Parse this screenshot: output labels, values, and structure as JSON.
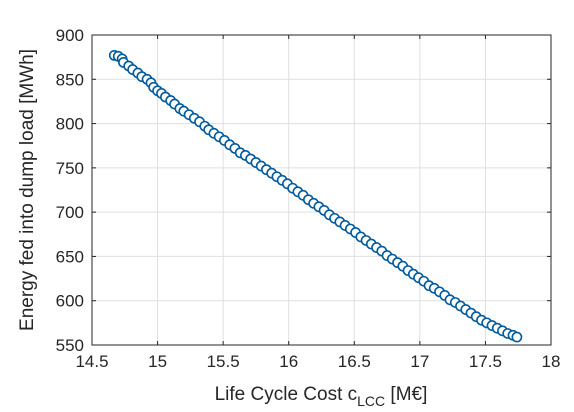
{
  "chart_data": {
    "type": "scatter",
    "title": "",
    "xlabel": {
      "main": "Life Cycle Cost c",
      "sub": "LCC",
      "unit": " [M€]"
    },
    "ylabel": "Energy fed into dump load [MWh]",
    "xlim": [
      14.5,
      18
    ],
    "ylim": [
      550,
      900
    ],
    "xticks": [
      14.5,
      15,
      15.5,
      16,
      16.5,
      17,
      17.5,
      18
    ],
    "xtick_labels": [
      "14.5",
      "15",
      "15.5",
      "16",
      "16.5",
      "17",
      "17.5",
      "18"
    ],
    "yticks": [
      550,
      600,
      650,
      700,
      750,
      800,
      850,
      900
    ],
    "ytick_labels": [
      "550",
      "600",
      "650",
      "700",
      "750",
      "800",
      "850",
      "900"
    ],
    "grid": true,
    "marker_edge_color": "#005a9c",
    "marker_face_color": "#ffffff",
    "series": [
      {
        "points": [
          [
            14.67,
            877
          ],
          [
            14.7,
            876
          ],
          [
            14.73,
            873
          ],
          [
            14.74,
            869
          ],
          [
            14.78,
            865
          ],
          [
            14.81,
            861
          ],
          [
            14.85,
            857
          ],
          [
            14.88,
            853
          ],
          [
            14.92,
            850
          ],
          [
            14.95,
            846
          ],
          [
            14.97,
            841
          ],
          [
            15.0,
            837
          ],
          [
            15.03,
            834
          ],
          [
            15.06,
            830
          ],
          [
            15.1,
            826
          ],
          [
            15.13,
            822
          ],
          [
            15.17,
            817
          ],
          [
            15.2,
            814
          ],
          [
            15.24,
            810
          ],
          [
            15.28,
            806
          ],
          [
            15.32,
            802
          ],
          [
            15.36,
            797
          ],
          [
            15.39,
            793
          ],
          [
            15.43,
            789
          ],
          [
            15.47,
            785
          ],
          [
            15.51,
            781
          ],
          [
            15.55,
            776
          ],
          [
            15.59,
            772
          ],
          [
            15.63,
            767
          ],
          [
            15.67,
            764
          ],
          [
            15.71,
            760
          ],
          [
            15.75,
            756
          ],
          [
            15.79,
            752
          ],
          [
            15.83,
            748
          ],
          [
            15.87,
            744
          ],
          [
            15.91,
            740
          ],
          [
            15.95,
            736
          ],
          [
            15.99,
            732
          ],
          [
            16.03,
            727
          ],
          [
            16.07,
            723
          ],
          [
            16.11,
            719
          ],
          [
            16.15,
            714
          ],
          [
            16.19,
            710
          ],
          [
            16.23,
            706
          ],
          [
            16.27,
            702
          ],
          [
            16.31,
            697
          ],
          [
            16.35,
            693
          ],
          [
            16.39,
            689
          ],
          [
            16.43,
            685
          ],
          [
            16.47,
            681
          ],
          [
            16.51,
            677
          ],
          [
            16.55,
            672
          ],
          [
            16.59,
            668
          ],
          [
            16.63,
            664
          ],
          [
            16.67,
            660
          ],
          [
            16.71,
            656
          ],
          [
            16.75,
            651
          ],
          [
            16.79,
            647
          ],
          [
            16.83,
            643
          ],
          [
            16.87,
            639
          ],
          [
            16.91,
            634
          ],
          [
            16.95,
            630
          ],
          [
            16.99,
            626
          ],
          [
            17.03,
            622
          ],
          [
            17.07,
            617
          ],
          [
            17.11,
            614
          ],
          [
            17.15,
            610
          ],
          [
            17.19,
            606
          ],
          [
            17.23,
            601
          ],
          [
            17.27,
            598
          ],
          [
            17.31,
            594
          ],
          [
            17.35,
            590
          ],
          [
            17.39,
            586
          ],
          [
            17.43,
            582
          ],
          [
            17.47,
            578
          ],
          [
            17.51,
            575
          ],
          [
            17.55,
            572
          ],
          [
            17.59,
            569
          ],
          [
            17.63,
            566
          ],
          [
            17.67,
            563
          ],
          [
            17.71,
            561
          ],
          [
            17.74,
            559
          ]
        ]
      }
    ]
  }
}
